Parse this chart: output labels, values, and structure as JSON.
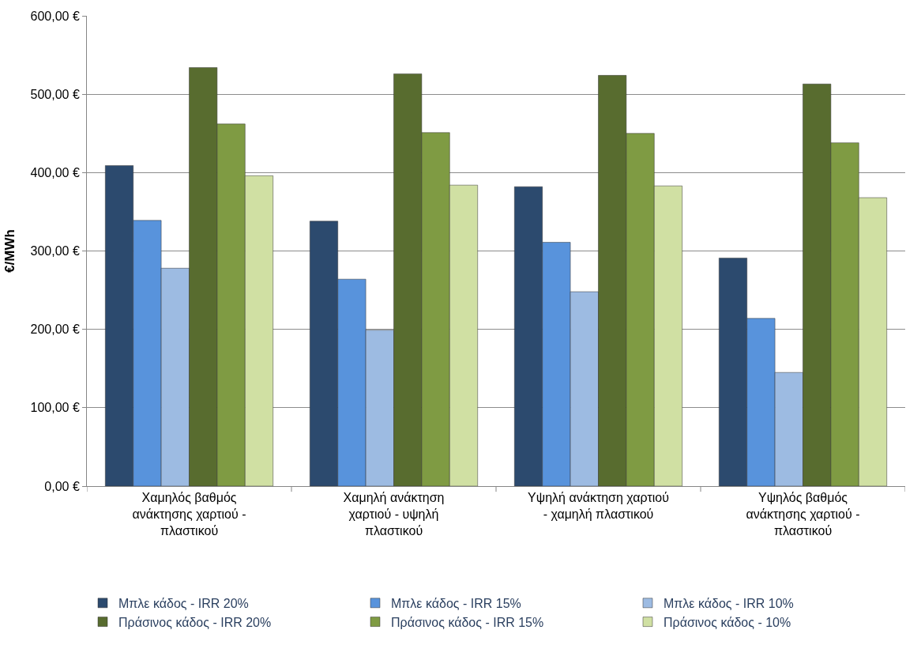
{
  "chart_data": {
    "type": "bar",
    "ylabel": "€/MWh",
    "categories": [
      "Χαμηλός βαθμός ανάκτησης χαρτιού - πλαστικού",
      "Χαμηλή ανάκτηση χαρτιού - υψηλή πλαστικού",
      "Υψηλή ανάκτηση χαρτιού - χαμηλή πλαστικού",
      "Υψηλός βαθμός ανάκτησης χαρτιού - πλαστικού"
    ],
    "series": [
      {
        "name": "Μπλε κάδος - IRR 20%",
        "color": "#2c4a6e",
        "values": [
          409,
          338,
          382,
          291
        ]
      },
      {
        "name": "Μπλε κάδος - IRR 15%",
        "color": "#5893dc",
        "values": [
          339,
          264,
          311,
          214
        ]
      },
      {
        "name": "Μπλε κάδος - IRR 10%",
        "color": "#9dbbe2",
        "values": [
          278,
          199,
          248,
          145
        ]
      },
      {
        "name": "Πράσινος κάδος - IRR 20%",
        "color": "#586c2f",
        "values": [
          534,
          526,
          524,
          513
        ]
      },
      {
        "name": "Πράσινος κάδος - IRR 15%",
        "color": "#7f9b43",
        "values": [
          462,
          451,
          450,
          438
        ]
      },
      {
        "name": "Πράσινος κάδος - 10%",
        "color": "#d0e0a3",
        "values": [
          396,
          384,
          383,
          368
        ]
      }
    ],
    "ylim": [
      0,
      600
    ],
    "yticks": [
      {
        "value": 0,
        "label": "0,00 €"
      },
      {
        "value": 100,
        "label": "100,00 €"
      },
      {
        "value": 200,
        "label": "200,00 €"
      },
      {
        "value": 300,
        "label": "300,00 €"
      },
      {
        "value": 400,
        "label": "400,00 €"
      },
      {
        "value": 500,
        "label": "500,00 €"
      },
      {
        "value": 600,
        "label": "600,00 €"
      }
    ],
    "grid": "y",
    "legend": "bottom"
  }
}
